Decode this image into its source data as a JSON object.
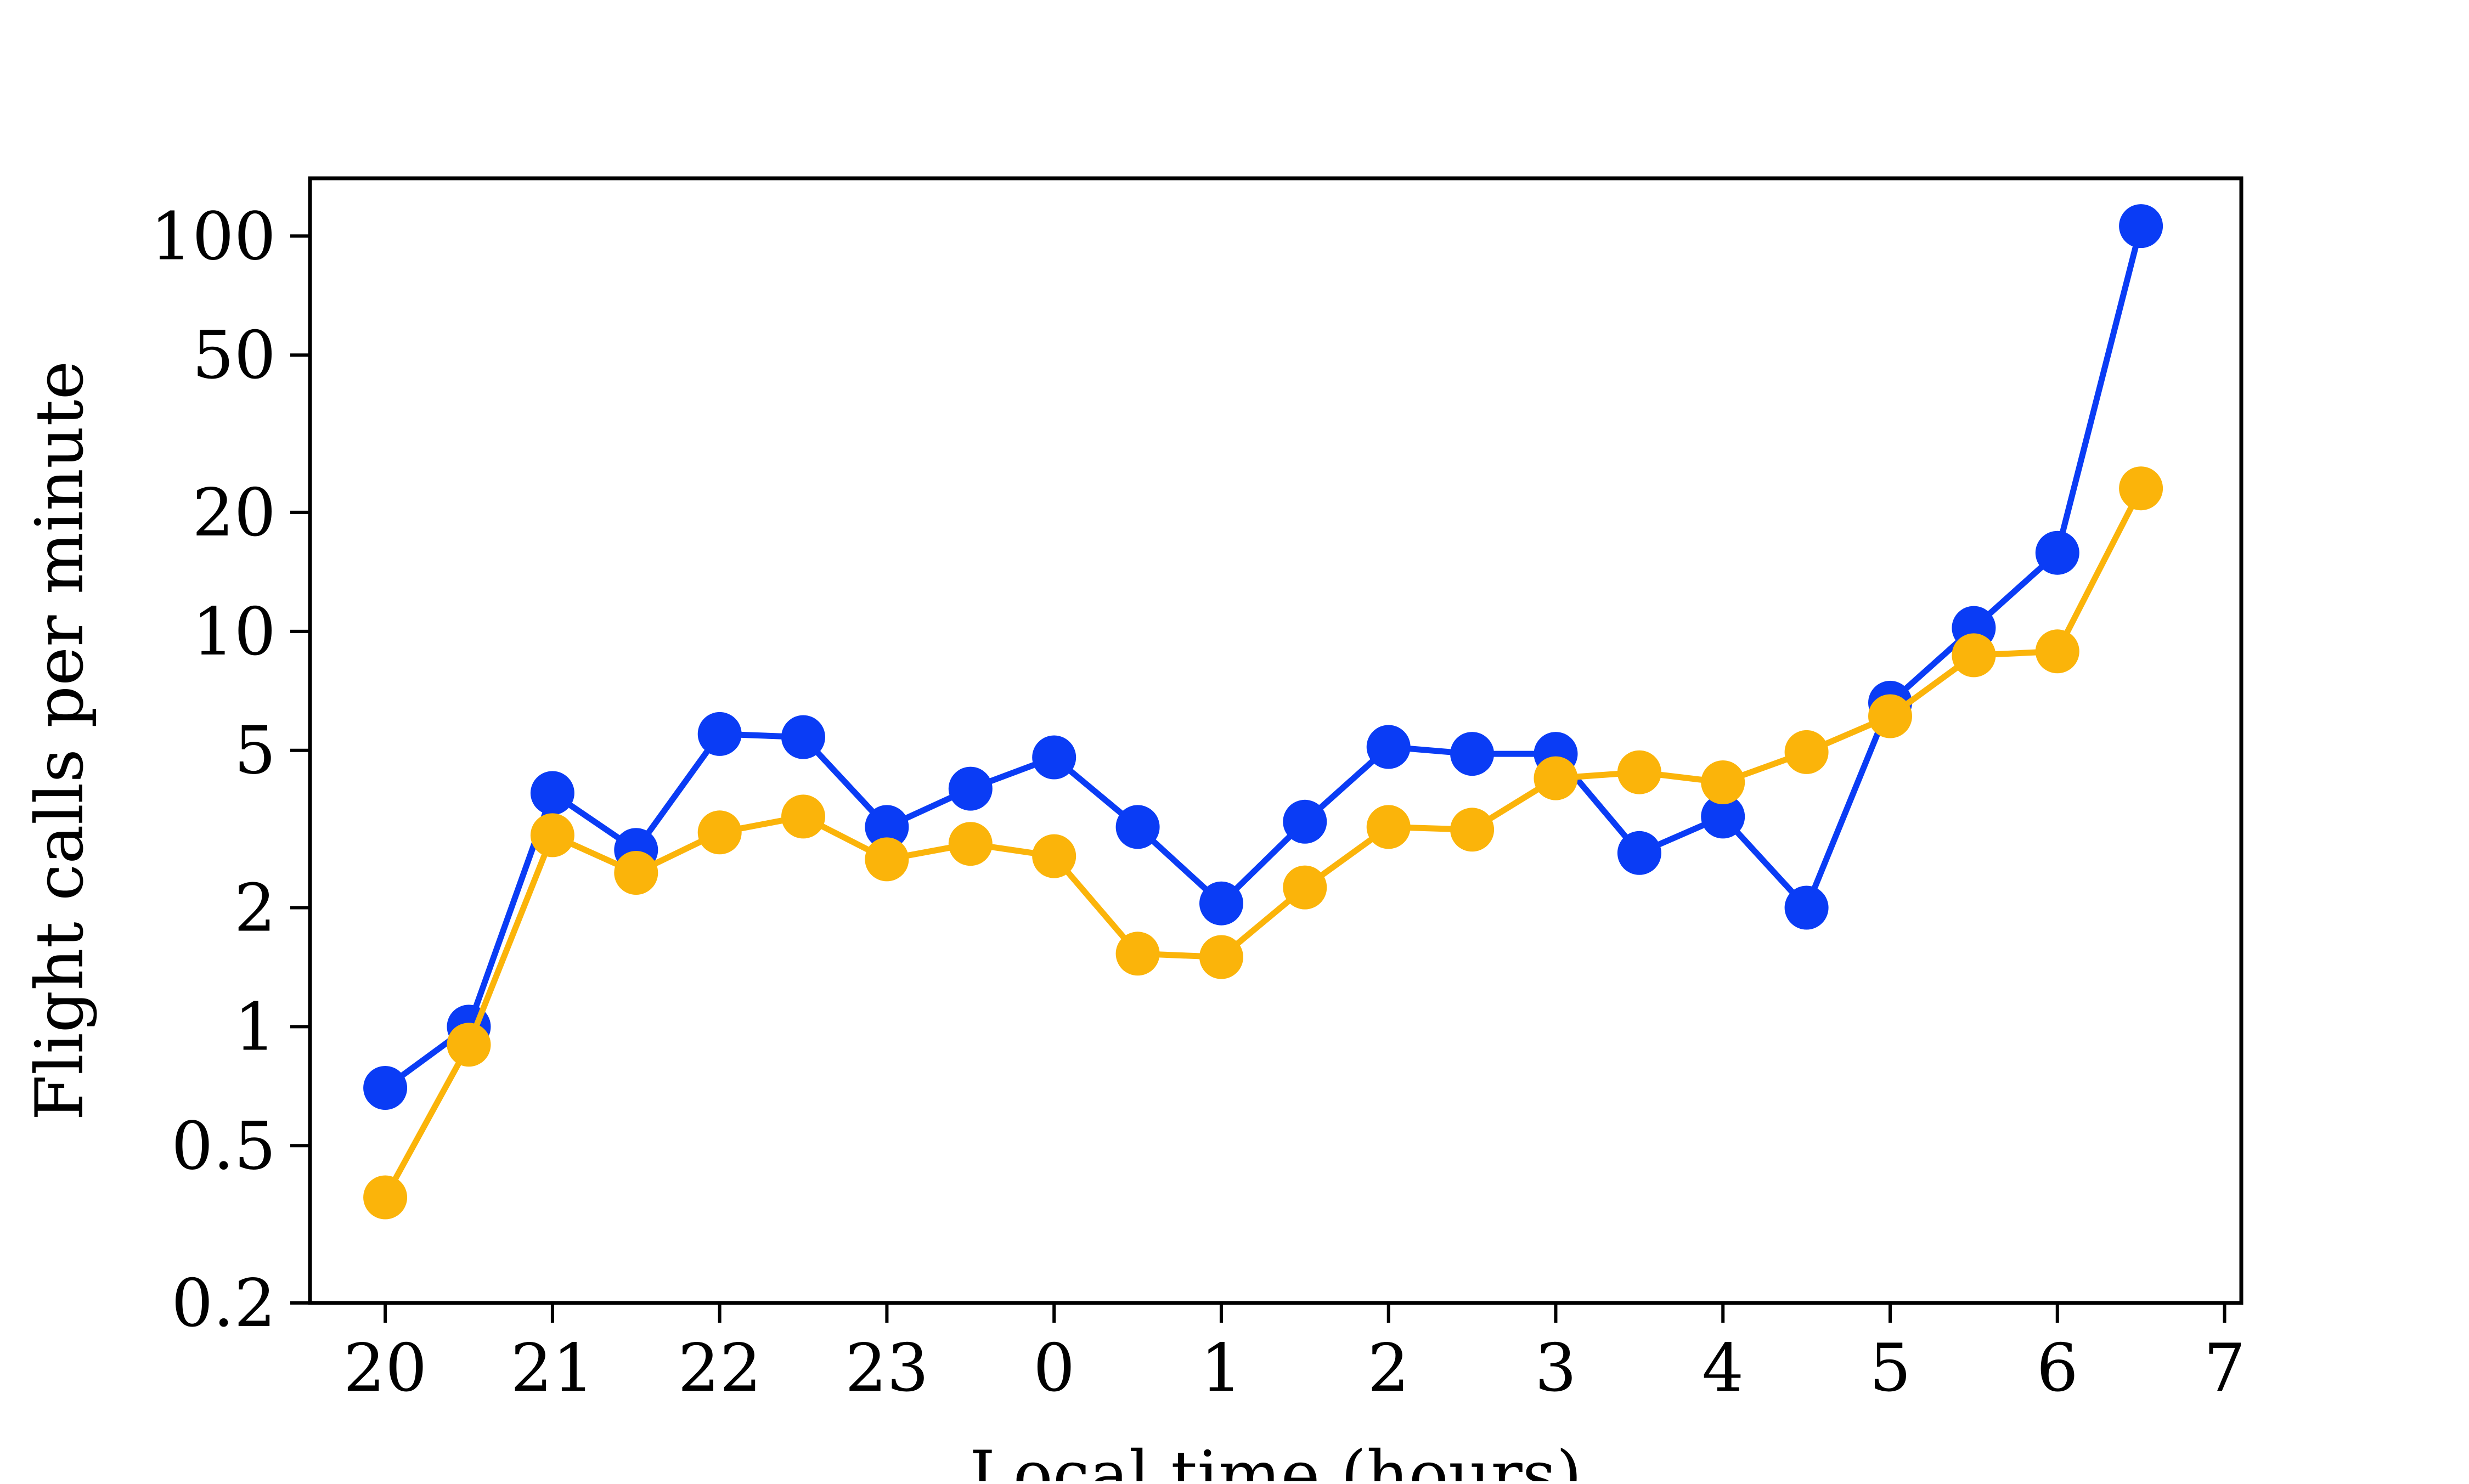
{
  "chart_data": {
    "type": "line",
    "title": "",
    "xlabel": "Local time (hours)",
    "ylabel": "Flight calls per minute",
    "y_scale": "log",
    "x_ticks": [
      {
        "value": 20,
        "label": "20"
      },
      {
        "value": 21,
        "label": "21"
      },
      {
        "value": 22,
        "label": "22"
      },
      {
        "value": 23,
        "label": "23"
      },
      {
        "value": 24,
        "label": "0"
      },
      {
        "value": 25,
        "label": "1"
      },
      {
        "value": 26,
        "label": "2"
      },
      {
        "value": 27,
        "label": "3"
      },
      {
        "value": 28,
        "label": "4"
      },
      {
        "value": 29,
        "label": "5"
      },
      {
        "value": 30,
        "label": "6"
      },
      {
        "value": 31,
        "label": "7"
      }
    ],
    "y_ticks": [
      {
        "value": 0.2,
        "label": "0.2"
      },
      {
        "value": 0.5,
        "label": "0.5"
      },
      {
        "value": 1,
        "label": "1"
      },
      {
        "value": 2,
        "label": "2"
      },
      {
        "value": 5,
        "label": "5"
      },
      {
        "value": 10,
        "label": "10"
      },
      {
        "value": 20,
        "label": "20"
      },
      {
        "value": 50,
        "label": "50"
      },
      {
        "value": 100,
        "label": "100"
      }
    ],
    "xlim": [
      19.55,
      31.1
    ],
    "ylim": [
      0.2,
      140
    ],
    "grid": false,
    "legend": "none",
    "x": [
      20,
      20.5,
      21,
      21.5,
      22,
      22.5,
      23,
      23.5,
      24,
      24.5,
      25,
      25.5,
      26,
      26.5,
      27,
      27.5,
      28,
      28.5,
      29,
      29.5,
      30,
      30.5
    ],
    "series": [
      {
        "color": "#0a3cf5",
        "values": [
          0.7,
          1.0,
          3.9,
          2.8,
          5.5,
          5.4,
          3.2,
          4.0,
          4.8,
          3.2,
          2.05,
          3.3,
          5.1,
          4.9,
          4.9,
          2.75,
          3.4,
          2.0,
          6.6,
          10.2,
          15.8,
          106
        ]
      },
      {
        "color": "#fbb40a",
        "values": [
          0.37,
          0.9,
          3.05,
          2.45,
          3.1,
          3.4,
          2.65,
          2.9,
          2.7,
          1.53,
          1.5,
          2.25,
          3.2,
          3.15,
          4.25,
          4.4,
          4.15,
          4.95,
          6.1,
          8.7,
          8.9,
          23
        ]
      }
    ]
  }
}
